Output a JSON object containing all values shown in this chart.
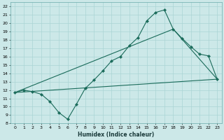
{
  "title": "",
  "xlabel": "Humidex (Indice chaleur)",
  "ylabel": "",
  "background_color": "#cce8e8",
  "grid_color": "#aad4d4",
  "line_color": "#1a6b5a",
  "xlim": [
    -0.5,
    23.5
  ],
  "ylim": [
    8,
    22.5
  ],
  "xticks": [
    0,
    1,
    2,
    3,
    4,
    5,
    6,
    7,
    8,
    9,
    10,
    11,
    12,
    13,
    14,
    15,
    16,
    17,
    18,
    19,
    20,
    21,
    22,
    23
  ],
  "yticks": [
    8,
    9,
    10,
    11,
    12,
    13,
    14,
    15,
    16,
    17,
    18,
    19,
    20,
    21,
    22
  ],
  "line1_x": [
    0,
    1,
    2,
    3,
    4,
    5,
    6,
    7,
    8,
    9,
    10,
    11,
    12,
    13,
    14,
    15,
    16,
    17,
    18,
    19,
    20,
    21,
    22,
    23
  ],
  "line1_y": [
    11.7,
    12.0,
    11.8,
    11.5,
    10.6,
    9.3,
    8.5,
    10.3,
    12.2,
    13.2,
    14.3,
    15.5,
    16.0,
    17.3,
    18.3,
    20.3,
    21.3,
    21.6,
    19.3,
    18.2,
    17.2,
    16.3,
    16.1,
    13.3
  ],
  "line2_x": [
    0,
    18,
    23
  ],
  "line2_y": [
    11.7,
    19.3,
    13.3
  ],
  "line3_x": [
    0,
    23
  ],
  "line3_y": [
    11.7,
    13.3
  ],
  "marker": "D",
  "marker_size": 2.2,
  "linewidth": 0.8
}
